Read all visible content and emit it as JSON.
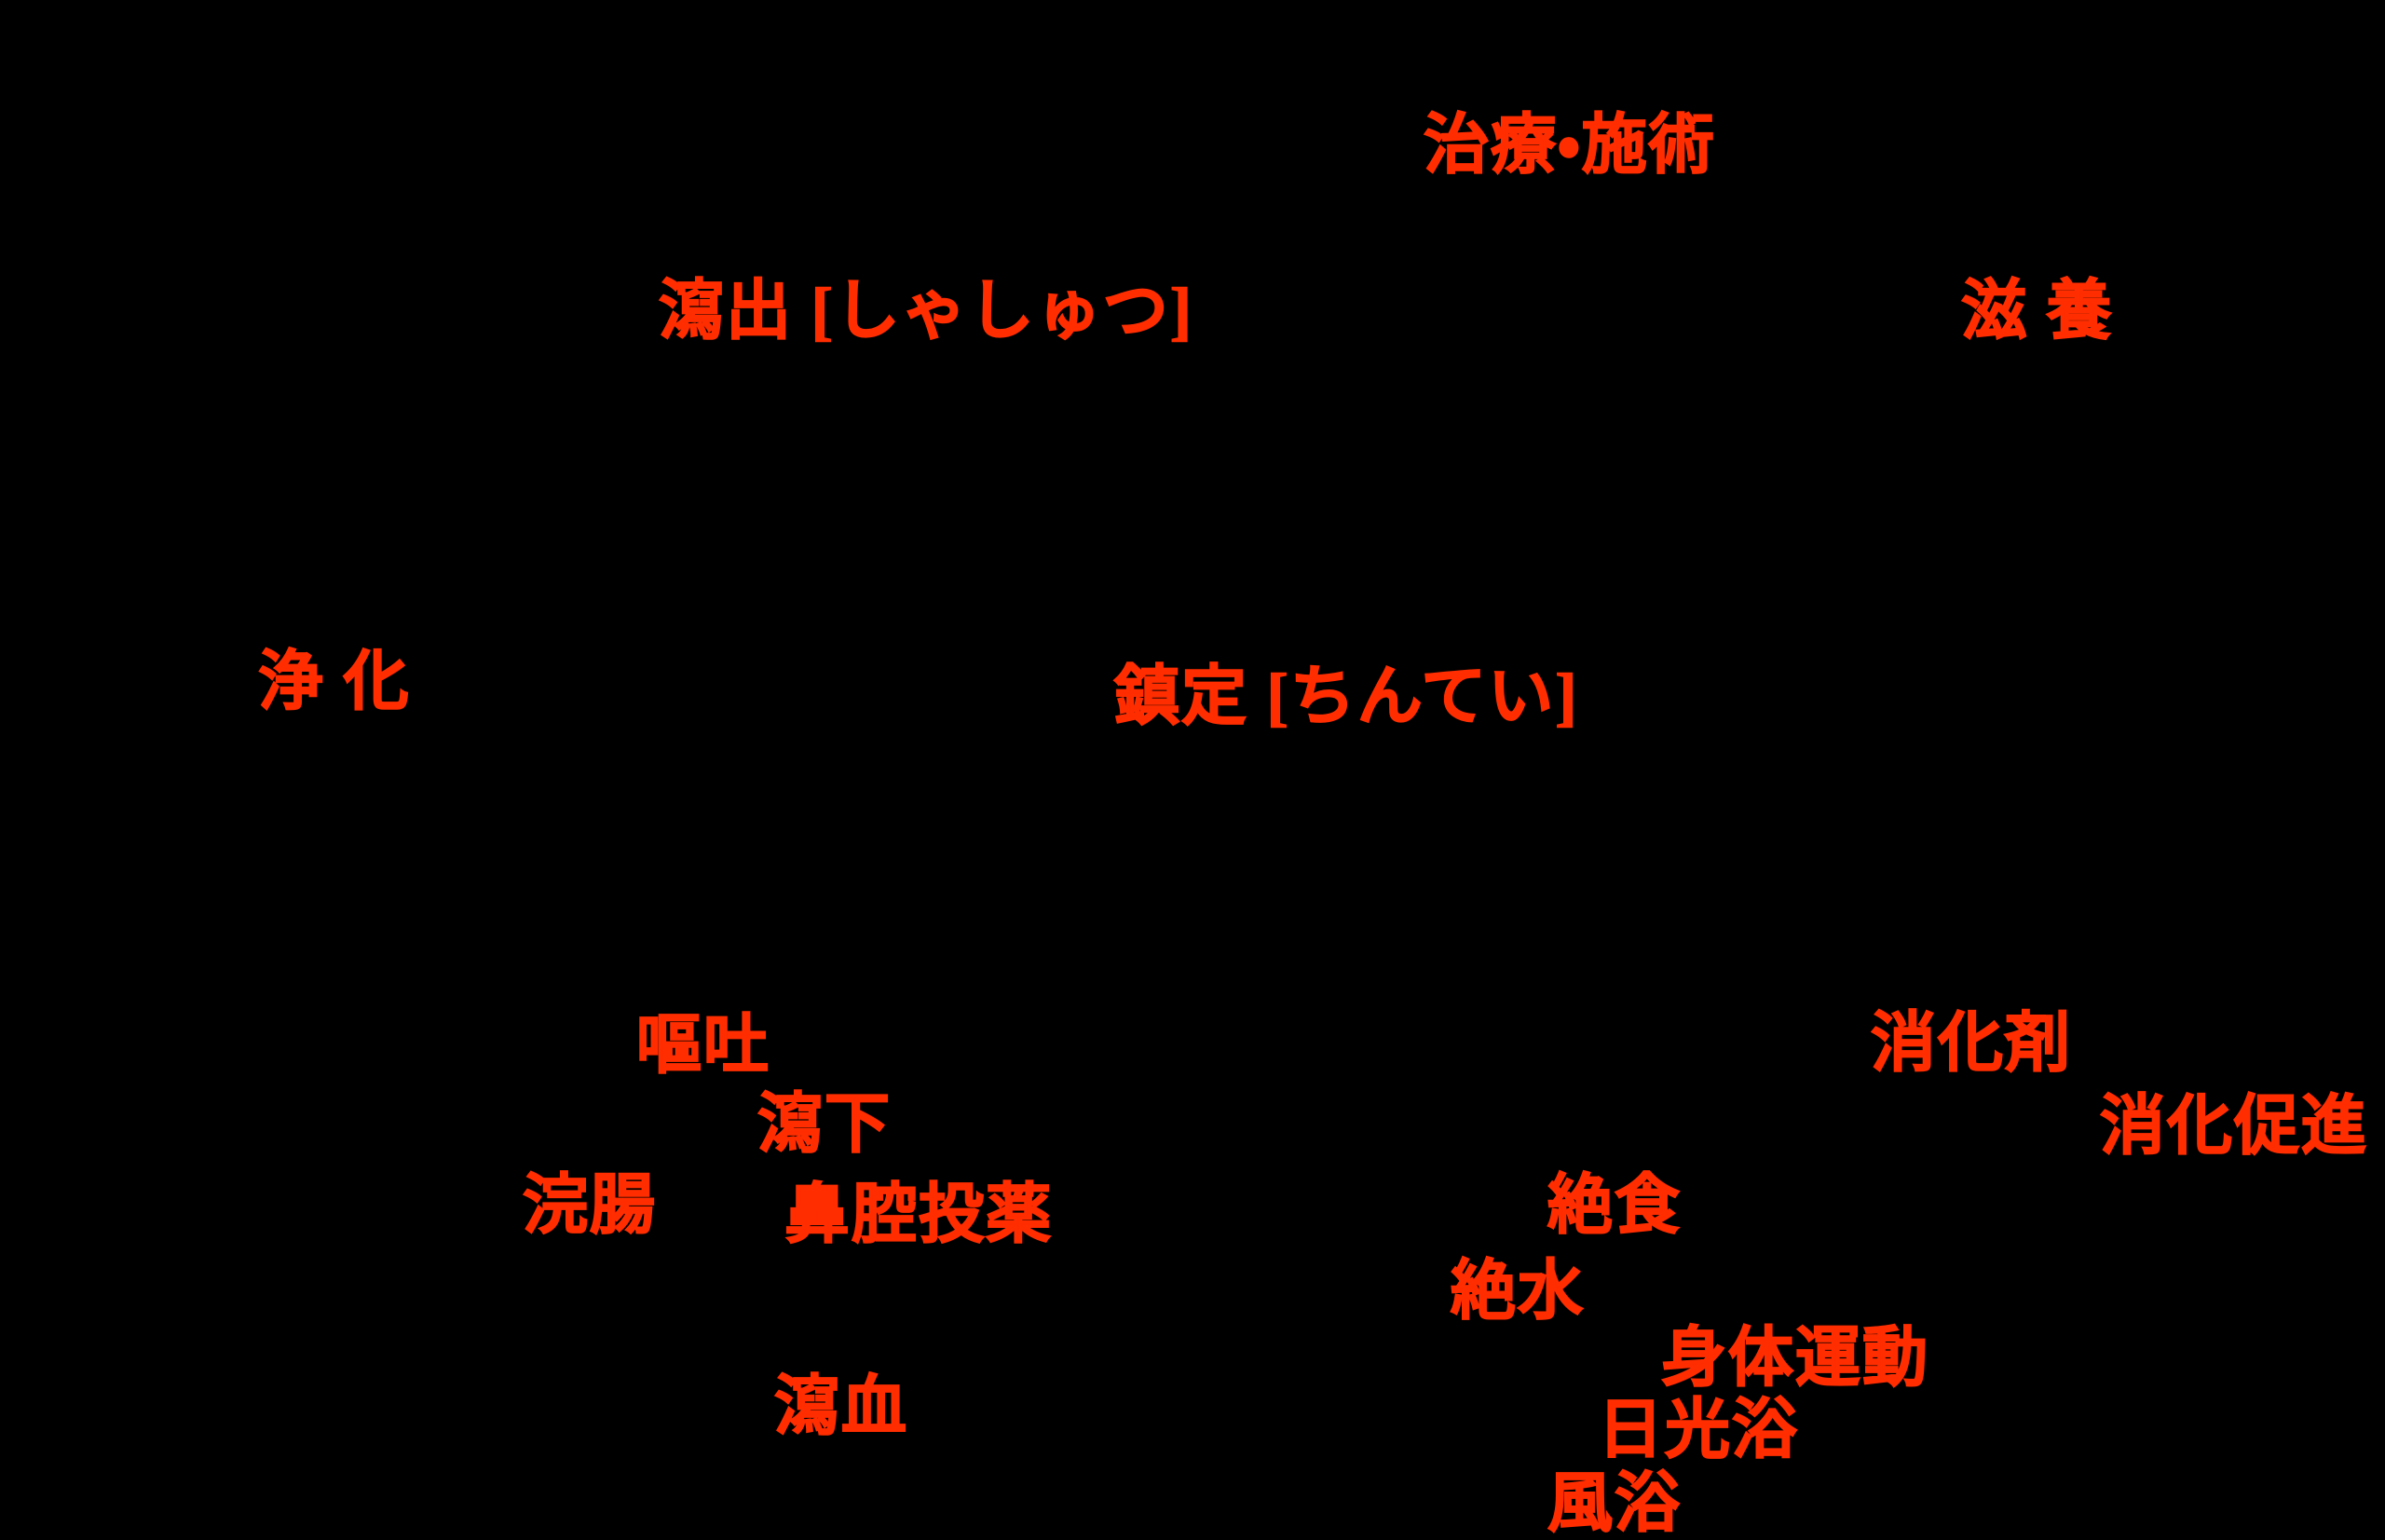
{
  "diagram": {
    "type": "radial-concept-map",
    "background_color": "#000000",
    "text_color": "#FF2D00",
    "center_topic": "治療・施術",
    "nodes": [
      {
        "name": "treatment",
        "text": "治療・施術"
      },
      {
        "name": "expulsion",
        "text": "瀉出 [しゃしゅつ]"
      },
      {
        "name": "nourishment",
        "text": "滋 養"
      },
      {
        "name": "purification",
        "text": "浄 化"
      },
      {
        "name": "sedation",
        "text": "鎮定 [ちんてい]"
      },
      {
        "name": "vomiting",
        "text": "嘔吐"
      },
      {
        "name": "purgation",
        "text": "瀉下"
      },
      {
        "name": "enema",
        "text": "浣腸"
      },
      {
        "name": "nasal-medication",
        "text": "鼻腔投薬"
      },
      {
        "name": "bloodletting",
        "text": "瀉血"
      },
      {
        "name": "digestive-agent",
        "text": "消化剤"
      },
      {
        "name": "digestion-promotion",
        "text": "消化促進"
      },
      {
        "name": "fasting",
        "text": "絶食"
      },
      {
        "name": "water-abstinence",
        "text": "絶水"
      },
      {
        "name": "physical-exercise",
        "text": "身体運動"
      },
      {
        "name": "sunbathing",
        "text": "日光浴"
      },
      {
        "name": "air-bathing",
        "text": "風浴"
      }
    ]
  }
}
